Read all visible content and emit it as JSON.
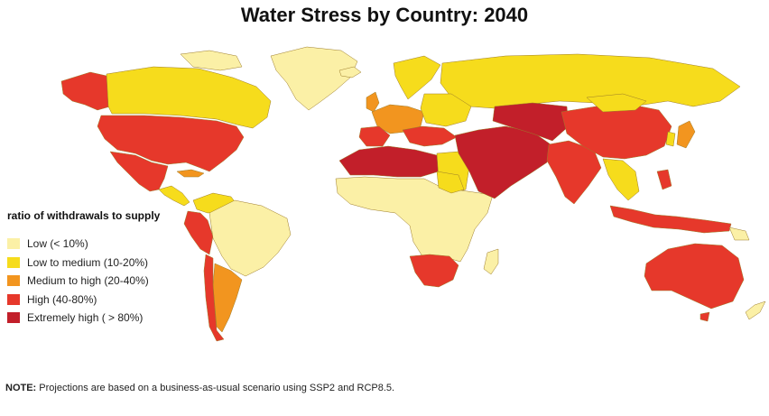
{
  "title": "Water Stress by Country: 2040",
  "legend": {
    "title": "ratio of withdrawals to supply",
    "items": [
      {
        "label": "Low (< 10%)",
        "color": "#fbf0a6"
      },
      {
        "label": "Low to medium (10-20%)",
        "color": "#f6dc1c"
      },
      {
        "label": "Medium to high  (20-40%)",
        "color": "#f2951f"
      },
      {
        "label": "High (40-80%)",
        "color": "#e6382b"
      },
      {
        "label": "Extremely high ( > 80%)",
        "color": "#c21f2a"
      }
    ]
  },
  "note": {
    "label": "NOTE:",
    "text": " Projections are based on a business-as-usual scenario using SSP2 and RCP8.5."
  }
}
